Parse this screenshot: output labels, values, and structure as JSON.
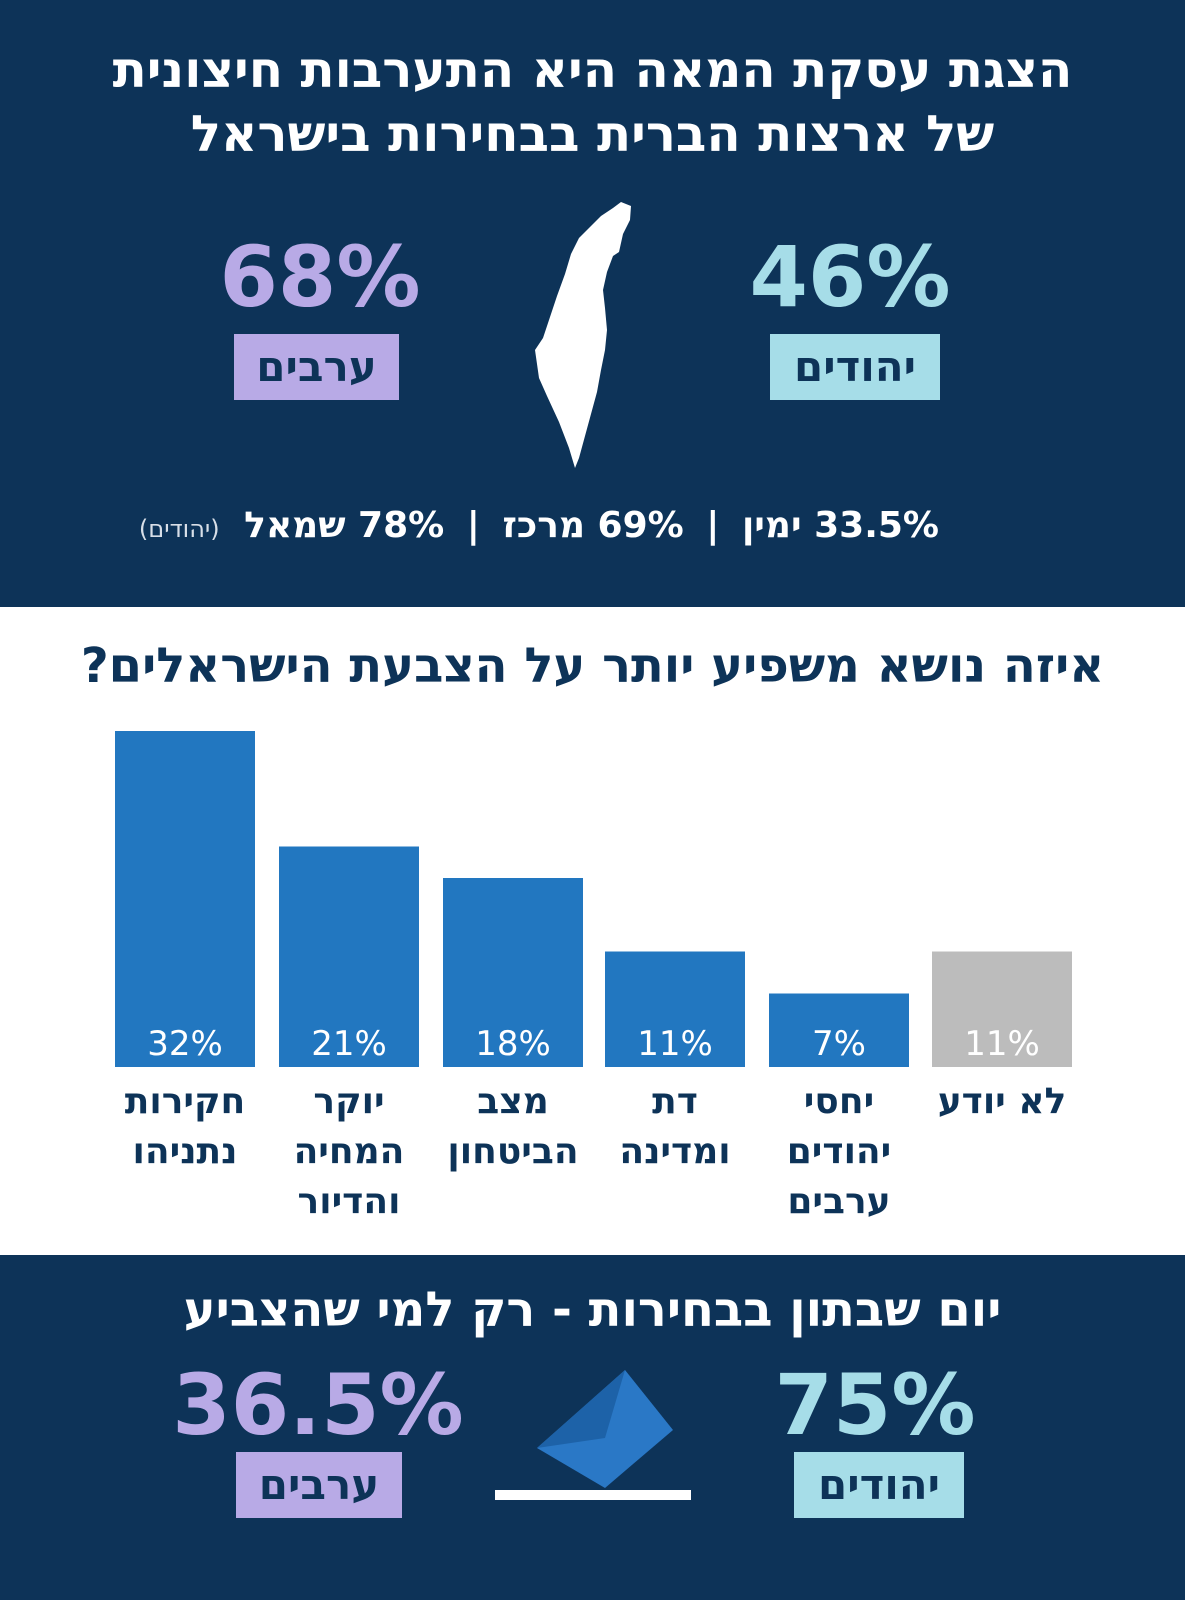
{
  "top": {
    "title_line1": "הצגת עסקת המאה היא התערבות חיצונית",
    "title_line2": "של ארצות הברית בבחירות בישראל",
    "jews": {
      "value": "46%",
      "label": "יהודים"
    },
    "arabs": {
      "value": "68%",
      "label": "ערבים"
    },
    "breakdown": {
      "right": "33.5% ימין",
      "center": "69% מרכז",
      "left": "78% שמאל",
      "separator": "|",
      "note": "(יהודים)"
    }
  },
  "chart_data": {
    "type": "bar",
    "title": "איזה נושא משפיע יותר על הצבעת הישראלים?",
    "categories": [
      [
        "חקירות",
        "נתניהו"
      ],
      [
        "יוקר",
        "המחיה",
        "והדיור"
      ],
      [
        "מצב",
        "הביטחון"
      ],
      [
        "דת",
        "ומדינה"
      ],
      [
        "יחסי",
        "יהודים",
        "ערבים"
      ],
      [
        "לא יודע"
      ]
    ],
    "values": [
      32,
      21,
      18,
      11,
      7,
      11
    ],
    "value_labels": [
      "32%",
      "21%",
      "18%",
      "11%",
      "7%",
      "11%"
    ],
    "bar_colors": [
      "#2277c0",
      "#2277c0",
      "#2277c0",
      "#2277c0",
      "#2277c0",
      "#bcbcbc"
    ],
    "ylim": [
      0,
      32
    ],
    "grid": false
  },
  "bottom": {
    "title": "יום שבתון בבחירות - רק למי שהצביע",
    "jews": {
      "value": "75%",
      "label": "יהודים"
    },
    "arabs": {
      "value": "36.5%",
      "label": "ערבים"
    }
  },
  "colors": {
    "navy": "#0d3358",
    "jews": "#a6dde8",
    "arabs": "#b8aae6",
    "bar": "#2277c0",
    "bar_unknown": "#bcbcbc"
  },
  "icons": {
    "map": "israel-map-icon",
    "ballot": "ballot-box-icon"
  }
}
